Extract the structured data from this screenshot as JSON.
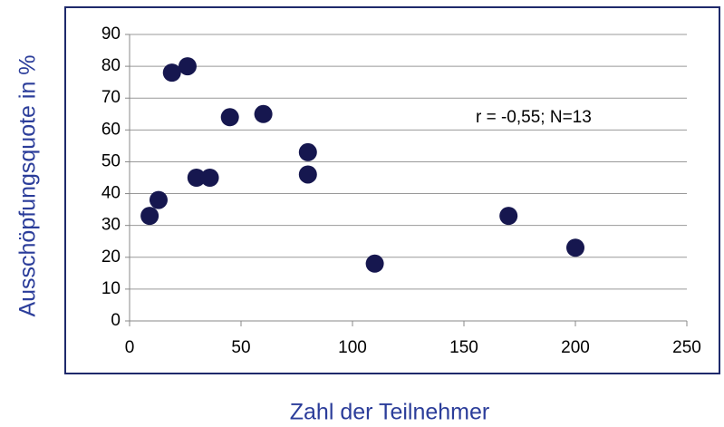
{
  "chart_data": {
    "type": "scatter",
    "xlabel": "Zahl der Teilnehmer",
    "ylabel": "Ausschöpfungsquote in %",
    "annotation": "r = -0,55; N=13",
    "x": [
      9,
      13,
      19,
      26,
      30,
      36,
      45,
      60,
      80,
      80,
      110,
      170,
      200
    ],
    "values": [
      33,
      38,
      78,
      80,
      45,
      45,
      64,
      65,
      53,
      46,
      18,
      33,
      23
    ],
    "color": "#16174f",
    "xlim": [
      0,
      250
    ],
    "xticks": [
      0,
      50,
      100,
      150,
      200,
      250
    ],
    "ylim": [
      0,
      90
    ],
    "yticks": [
      0,
      10,
      20,
      30,
      40,
      50,
      60,
      70,
      80,
      90
    ],
    "grid": true
  }
}
